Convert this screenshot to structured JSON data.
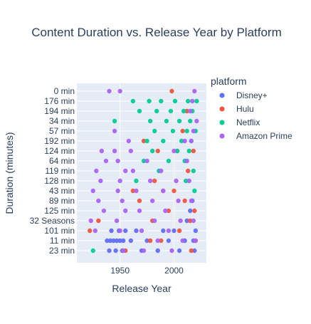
{
  "chart_data": {
    "type": "scatter",
    "title": "Content Duration vs. Release Year by Platform",
    "xlabel": "Release Year",
    "ylabel": "Duration (minutes)",
    "xlim": [
      1910,
      2030
    ],
    "x_ticks": [
      1950,
      2000
    ],
    "y_is_categorical": true,
    "y_categories": [
      "0 min",
      "176 min",
      "194 min",
      "34 min",
      "57 min",
      "192 min",
      "124 min",
      "64 min",
      "119 min",
      "128 min",
      "43 min",
      "89 min",
      "125 min",
      "32 Seasons",
      "101 min",
      "11 min",
      "23 min"
    ],
    "legend_title": "platform",
    "legend_position": "right",
    "grid": true,
    "series": [
      {
        "name": "Disney+",
        "color": "#636efa",
        "points": [
          [
            1938,
            15
          ],
          [
            1941,
            15
          ],
          [
            1944,
            15
          ],
          [
            1947,
            15
          ],
          [
            1950,
            15
          ],
          [
            1953,
            15
          ],
          [
            1940,
            16
          ],
          [
            1946,
            16
          ],
          [
            1952,
            16
          ],
          [
            1942,
            14
          ],
          [
            1949,
            14
          ],
          [
            1955,
            14
          ],
          [
            1960,
            15
          ],
          [
            1965,
            14
          ],
          [
            1970,
            16
          ],
          [
            1975,
            15
          ],
          [
            1985,
            16
          ],
          [
            1990,
            14
          ],
          [
            1995,
            15
          ],
          [
            2000,
            14
          ],
          [
            2005,
            16
          ],
          [
            2010,
            15
          ],
          [
            2012,
            13
          ],
          [
            2015,
            12
          ],
          [
            2017,
            11
          ],
          [
            2018,
            15
          ],
          [
            2019,
            16
          ],
          [
            2020,
            14
          ]
        ]
      },
      {
        "name": "Hulu",
        "color": "#ef553b",
        "points": [
          [
            1922,
            14
          ],
          [
            1930,
            13
          ],
          [
            1955,
            16
          ],
          [
            1962,
            10
          ],
          [
            1968,
            11
          ],
          [
            1972,
            5
          ],
          [
            1978,
            15
          ],
          [
            1980,
            13
          ],
          [
            1982,
            9
          ],
          [
            1985,
            6
          ],
          [
            1988,
            15
          ],
          [
            1990,
            10
          ],
          [
            1995,
            12
          ],
          [
            1998,
            0
          ],
          [
            2000,
            10
          ],
          [
            2003,
            6
          ],
          [
            2005,
            14
          ],
          [
            2008,
            4
          ],
          [
            2010,
            11
          ],
          [
            2012,
            2
          ],
          [
            2013,
            8
          ],
          [
            2015,
            13
          ],
          [
            2016,
            16
          ],
          [
            2018,
            6
          ],
          [
            2019,
            12
          ],
          [
            2020,
            15
          ]
        ]
      },
      {
        "name": "Netflix",
        "color": "#00cc96",
        "points": [
          [
            1925,
            16
          ],
          [
            1945,
            3
          ],
          [
            1962,
            1
          ],
          [
            1965,
            9
          ],
          [
            1968,
            2
          ],
          [
            1972,
            7
          ],
          [
            1975,
            5
          ],
          [
            1977,
            1
          ],
          [
            1978,
            3
          ],
          [
            1980,
            6
          ],
          [
            1982,
            4
          ],
          [
            1984,
            2
          ],
          [
            1986,
            8
          ],
          [
            1988,
            1
          ],
          [
            1990,
            5
          ],
          [
            1993,
            3
          ],
          [
            1995,
            7
          ],
          [
            1997,
            2
          ],
          [
            1999,
            4
          ],
          [
            2001,
            1
          ],
          [
            2003,
            6
          ],
          [
            2005,
            3
          ],
          [
            2007,
            5
          ],
          [
            2009,
            2
          ],
          [
            2010,
            7
          ],
          [
            2011,
            9
          ],
          [
            2012,
            4
          ],
          [
            2013,
            1
          ],
          [
            2014,
            6
          ],
          [
            2015,
            3
          ],
          [
            2016,
            5
          ],
          [
            2017,
            2
          ],
          [
            2018,
            8
          ],
          [
            2019,
            10
          ],
          [
            2020,
            4
          ],
          [
            2021,
            1
          ]
        ]
      },
      {
        "name": "Amazon Prime",
        "color": "#ab63fa",
        "points": [
          [
            1940,
            0
          ],
          [
            1950,
            0
          ],
          [
            1933,
            6
          ],
          [
            1937,
            7
          ],
          [
            1928,
            8
          ],
          [
            1932,
            9
          ],
          [
            1925,
            10
          ],
          [
            1930,
            11
          ],
          [
            1935,
            12
          ],
          [
            1923,
            13
          ],
          [
            1927,
            14
          ],
          [
            1945,
            4
          ],
          [
            1958,
            5
          ],
          [
            1945,
            6
          ],
          [
            1948,
            7
          ],
          [
            1955,
            8
          ],
          [
            1950,
            9
          ],
          [
            1948,
            10
          ],
          [
            1952,
            11
          ],
          [
            1955,
            12
          ],
          [
            1947,
            13
          ],
          [
            1950,
            14
          ],
          [
            1953,
            16
          ],
          [
            1960,
            6
          ],
          [
            1962,
            8
          ],
          [
            1965,
            10
          ],
          [
            1968,
            12
          ],
          [
            1970,
            14
          ],
          [
            1972,
            16
          ],
          [
            1975,
            7
          ],
          [
            1978,
            9
          ],
          [
            1980,
            11
          ],
          [
            1982,
            13
          ],
          [
            1985,
            15
          ],
          [
            1988,
            8
          ],
          [
            1990,
            10
          ],
          [
            1992,
            12
          ],
          [
            1995,
            14
          ],
          [
            1998,
            16
          ],
          [
            2000,
            6
          ],
          [
            2002,
            9
          ],
          [
            2004,
            11
          ],
          [
            2006,
            13
          ],
          [
            2008,
            15
          ],
          [
            2010,
            5
          ],
          [
            2012,
            7
          ],
          [
            2014,
            9
          ],
          [
            2016,
            11
          ],
          [
            2018,
            13
          ],
          [
            2020,
            15
          ],
          [
            2019,
            0
          ],
          [
            2017,
            1
          ],
          [
            2015,
            2
          ],
          [
            2021,
            3
          ],
          [
            2018,
            4
          ],
          [
            2016,
            5
          ]
        ]
      }
    ]
  }
}
